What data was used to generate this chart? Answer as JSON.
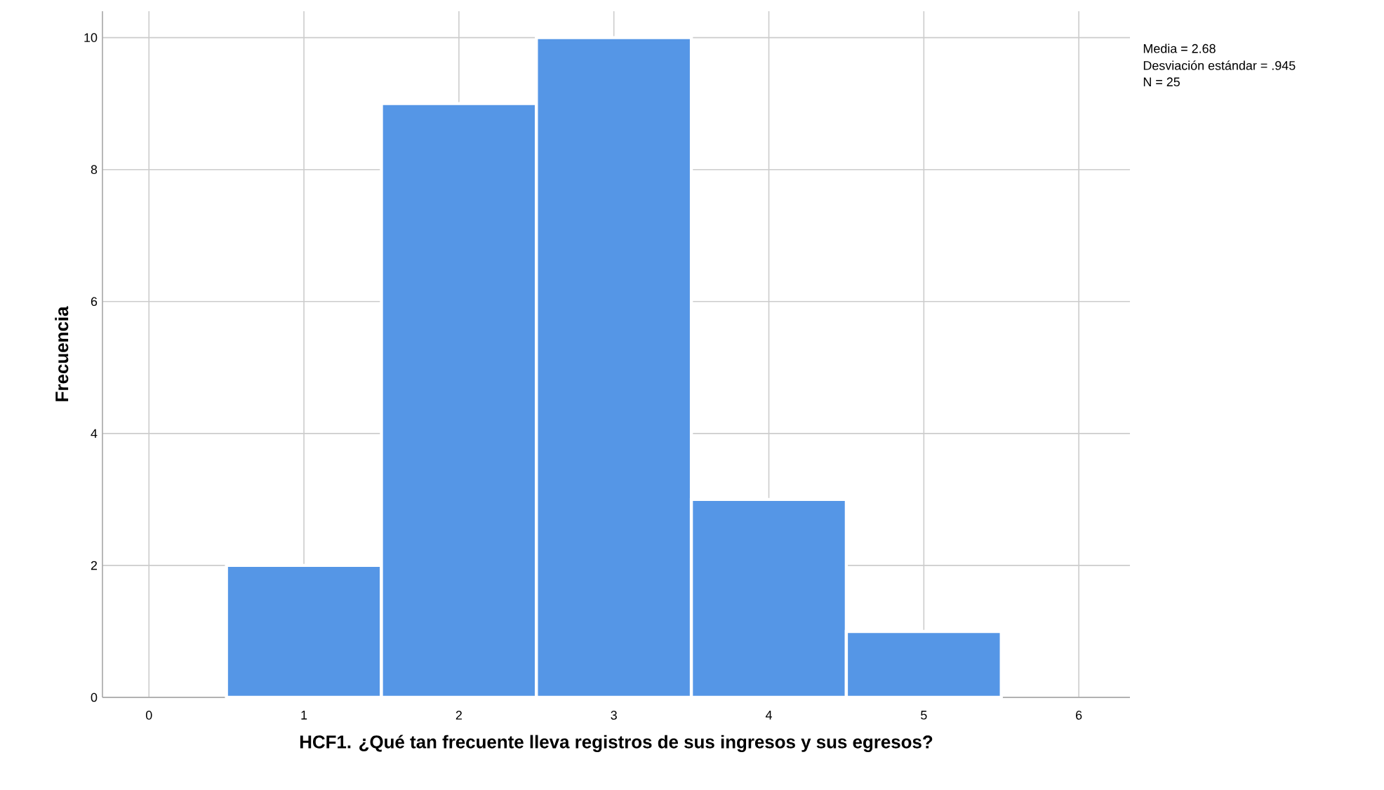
{
  "chart_data": {
    "type": "histogram",
    "xlabel": "HCF1. ¿Qué tan frecuente lleva registros de sus ingresos y sus egresos?",
    "ylabel": "Frecuencia",
    "bins": [
      0.5,
      1.5,
      2.5,
      3.5,
      4.5,
      5.5
    ],
    "values": [
      2,
      9,
      10,
      3,
      1
    ],
    "color": "#5596e6",
    "xlim": [
      -0.3,
      6.33
    ],
    "xticks": [
      0,
      1,
      2,
      3,
      4,
      5,
      6
    ],
    "ylim": [
      0,
      10.4
    ],
    "yticks": [
      0,
      2,
      4,
      6,
      8,
      10
    ],
    "grid": true,
    "annotations": [
      "Media = 2.68",
      "Desviación estándar = .945",
      "N = 25"
    ]
  }
}
